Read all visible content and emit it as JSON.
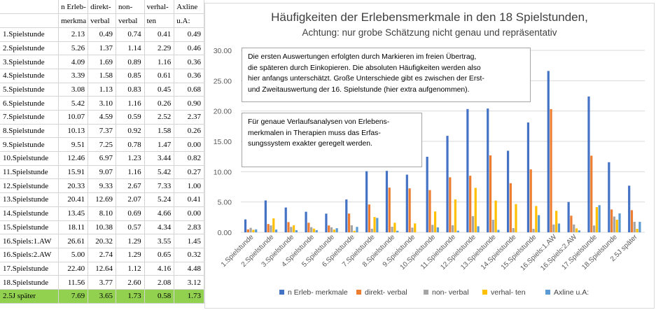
{
  "table": {
    "headers": [
      {
        "line1": "",
        "line2": ""
      },
      {
        "line1": "n Erleb-",
        "line2": "merkma"
      },
      {
        "line1": "direkt-",
        "line2": "verbal"
      },
      {
        "line1": "non-",
        "line2": "verbal"
      },
      {
        "line1": "verhal-",
        "line2": "ten"
      },
      {
        "line1": "Axline",
        "line2": "u.A:"
      }
    ],
    "rows": [
      {
        "label": "1.Spielstunde",
        "v": [
          "2.13",
          "0.49",
          "0.74",
          "0.41",
          "0.49"
        ]
      },
      {
        "label": "2.Spielstunde",
        "v": [
          "5.26",
          "1.37",
          "1.14",
          "2.29",
          "0.46"
        ]
      },
      {
        "label": "3.Spielstunde",
        "v": [
          "4.09",
          "1.69",
          "0.89",
          "1.16",
          "0.36"
        ]
      },
      {
        "label": "4.Spielstunde",
        "v": [
          "3.39",
          "1.58",
          "0.85",
          "0.61",
          "0.36"
        ]
      },
      {
        "label": "5.Spielstunde",
        "v": [
          "3.08",
          "1.13",
          "0.83",
          "0.45",
          "0.68"
        ]
      },
      {
        "label": "6.Spielstunde",
        "v": [
          "5.42",
          "3.10",
          "1.16",
          "0.26",
          "0.90"
        ]
      },
      {
        "label": "7.Spielstunde",
        "v": [
          "10.07",
          "4.59",
          "0.59",
          "2.52",
          "2.37"
        ]
      },
      {
        "label": "8.Spielstunde",
        "v": [
          "10.13",
          "7.37",
          "0.92",
          "1.58",
          "0.26"
        ]
      },
      {
        "label": "9.Spielstunde",
        "v": [
          "9.51",
          "7.25",
          "0.78",
          "1.47",
          "0.00"
        ]
      },
      {
        "label": "10.Spielstunde",
        "v": [
          "12.46",
          "6.97",
          "1.23",
          "3.44",
          "0.82"
        ]
      },
      {
        "label": "11.Spielstunde",
        "v": [
          "15.91",
          "9.07",
          "1.16",
          "5.42",
          "0.27"
        ]
      },
      {
        "label": "12.Spielstunde",
        "v": [
          "20.33",
          "9.33",
          "2.67",
          "7.33",
          "1.00"
        ]
      },
      {
        "label": "13.Spielstunde",
        "v": [
          "20.41",
          "12.69",
          "2.07",
          "5.24",
          "0.41"
        ]
      },
      {
        "label": "14.Spielstunde",
        "v": [
          "13.45",
          "8.10",
          "0.69",
          "4.66",
          "0.00"
        ]
      },
      {
        "label": "15.Spielstunde",
        "v": [
          "18.11",
          "10.38",
          "0.57",
          "4.34",
          "2.83"
        ]
      },
      {
        "label": "16.Spiels:1.AW",
        "v": [
          "26.61",
          "20.32",
          "1.29",
          "3.55",
          "1.45"
        ]
      },
      {
        "label": "16.Spiels:2.AW",
        "v": [
          "5.00",
          "2.74",
          "1.29",
          "0.65",
          "0.32"
        ]
      },
      {
        "label": "17.Spielstunde",
        "v": [
          "22.40",
          "12.64",
          "1.12",
          "4.16",
          "4.48"
        ]
      },
      {
        "label": "18.Spielstunde",
        "v": [
          "11.56",
          "3.77",
          "2.60",
          "2.08",
          "3.12"
        ]
      },
      {
        "label": "2.5J später",
        "v": [
          "7.69",
          "3.65",
          "1.73",
          "0.58",
          "1.73"
        ],
        "highlight": true
      }
    ]
  },
  "chart_data": {
    "type": "bar",
    "title": "Häufigkeiten der Erlebensmerkmale in den 18 Spielstunden,",
    "subtitle": "Achtung: nur grobe Schätzung nicht genau und repräsentativ",
    "categories": [
      "1.Spielstunde",
      "2.Spielstunde",
      "3.Spielstunde",
      "4.Spielstunde",
      "5.Spielstunde",
      "6.Spielstunde",
      "7.Spielstunde",
      "8.Spielstunde",
      "9.Spielstunde",
      "10.Spielstunde",
      "11.Spielstunde",
      "12.Spielstunde",
      "13.Spielstunde",
      "14.Spielstunde",
      "15.Spielstunde",
      "16.Spiels:1.AW",
      "16.Spiels:2.AW",
      "17.Spielstunde",
      "18.Spielstunde",
      "2.5J später"
    ],
    "series": [
      {
        "name": "n Erleb- merkmale",
        "color": "#4472c4",
        "values": [
          2.13,
          5.26,
          4.09,
          3.39,
          3.08,
          5.42,
          10.07,
          10.13,
          9.51,
          12.46,
          15.91,
          20.33,
          20.41,
          13.45,
          18.11,
          26.61,
          5.0,
          22.4,
          11.56,
          7.69
        ]
      },
      {
        "name": "direkt- verbal",
        "color": "#ed7d31",
        "values": [
          0.49,
          1.37,
          1.69,
          1.58,
          1.13,
          3.1,
          4.59,
          7.37,
          7.25,
          6.97,
          9.07,
          9.33,
          12.69,
          8.1,
          10.38,
          20.32,
          2.74,
          12.64,
          3.77,
          3.65
        ]
      },
      {
        "name": "non- verbal",
        "color": "#a5a5a5",
        "values": [
          0.74,
          1.14,
          0.89,
          0.85,
          0.83,
          1.16,
          0.59,
          0.92,
          0.78,
          1.23,
          1.16,
          2.67,
          2.07,
          0.69,
          0.57,
          1.29,
          1.29,
          1.12,
          2.6,
          1.73
        ]
      },
      {
        "name": "verhal- ten",
        "color": "#ffc000",
        "values": [
          0.41,
          2.29,
          1.16,
          0.61,
          0.45,
          0.26,
          2.52,
          1.58,
          1.47,
          3.44,
          5.42,
          7.33,
          5.24,
          4.66,
          4.34,
          3.55,
          0.65,
          4.16,
          2.08,
          0.58
        ]
      },
      {
        "name": "Axline u.A:",
        "color": "#5b9bd5",
        "values": [
          0.49,
          0.46,
          0.36,
          0.36,
          0.68,
          0.9,
          2.37,
          0.26,
          0.0,
          0.82,
          0.27,
          1.0,
          0.41,
          0.0,
          2.83,
          1.45,
          0.32,
          4.48,
          3.12,
          1.73
        ]
      }
    ],
    "y_ticks": [
      "0.00",
      "5.00",
      "10.00",
      "15.00",
      "20.00",
      "25.00",
      "30.00"
    ],
    "ylim": [
      0,
      30
    ],
    "grid": true,
    "legend_position": "bottom",
    "annotations": [
      {
        "lines": [
          "Die ersten Auswertungen erfolgten durch Markieren im freien Übertrag,",
          "die späteren durch Einkopieren. Die absoluten Häufigkeiten werden also",
          "hier anfangs unterschätzt. Große Unterschiede gibt es zwischen der Erst-",
          "und Zweitauswertung der 16. Spielstunde (hier extra aufgenommen)."
        ]
      },
      {
        "lines": [
          "Für genaue Verlaufsanalysen von Erlebens-",
          "merkmalen in Therapien muss das Erfas-",
          "sungssystem exakter geregelt werden."
        ]
      }
    ]
  }
}
